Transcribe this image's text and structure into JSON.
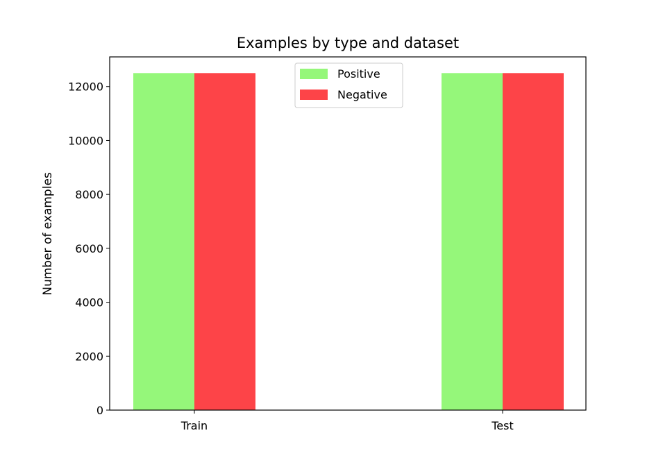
{
  "chart_data": {
    "type": "bar",
    "title": "Examples by type and dataset",
    "xlabel": "",
    "ylabel": "Number of examples",
    "categories": [
      "Train",
      "Test"
    ],
    "series": [
      {
        "name": "Positive",
        "values": [
          12500,
          12500
        ],
        "color": "#95f77a"
      },
      {
        "name": "Negative",
        "values": [
          12500,
          12500
        ],
        "color": "#fd4448"
      }
    ],
    "ylim": [
      0,
      13100
    ],
    "yticks": [
      0,
      2000,
      4000,
      6000,
      8000,
      10000,
      12000
    ],
    "ytick_labels": [
      "0",
      "2000",
      "4000",
      "6000",
      "8000",
      "10000",
      "12000"
    ],
    "legend_position": "top-center",
    "grid": false
  }
}
